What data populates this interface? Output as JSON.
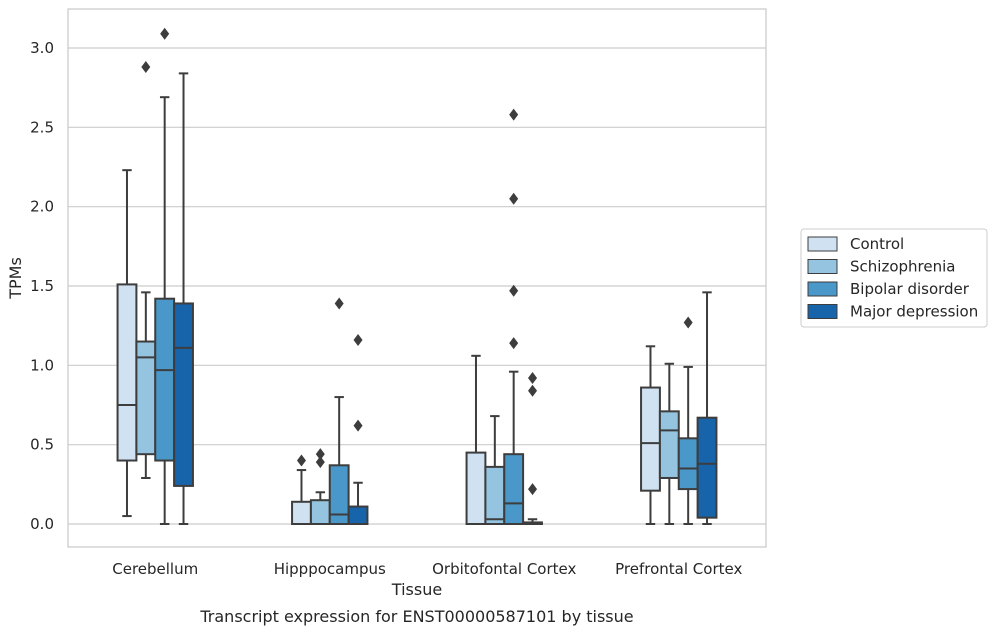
{
  "chart_data": {
    "type": "box",
    "title": "",
    "caption": "Transcript expression for ENST00000587101 by tissue",
    "xlabel": "Tissue",
    "ylabel": "TPMs",
    "ylim": [
      -0.15,
      3.25
    ],
    "yticks": [
      0.0,
      0.5,
      1.0,
      1.5,
      2.0,
      2.5,
      3.0
    ],
    "ytick_labels": [
      "0.0",
      "0.5",
      "1.0",
      "1.5",
      "2.0",
      "2.5",
      "3.0"
    ],
    "grid": "horizontal",
    "legend_position": "outside-right",
    "categories": [
      "Cerebellum",
      "Hipppocampus",
      "Orbitofontal Cortex",
      "Prefrontal Cortex"
    ],
    "series": [
      {
        "name": "Control",
        "color": "#d0e1f2",
        "boxes": [
          {
            "whislo": 0.05,
            "q1": 0.4,
            "med": 0.75,
            "q3": 1.51,
            "whishi": 2.23,
            "fliers": []
          },
          {
            "whislo": 0.0,
            "q1": 0.0,
            "med": 0.0,
            "q3": 0.14,
            "whishi": 0.34,
            "fliers": [
              0.4
            ]
          },
          {
            "whislo": 0.0,
            "q1": 0.0,
            "med": 0.0,
            "q3": 0.45,
            "whishi": 1.06,
            "fliers": []
          },
          {
            "whislo": 0.0,
            "q1": 0.21,
            "med": 0.51,
            "q3": 0.86,
            "whishi": 1.12,
            "fliers": []
          }
        ]
      },
      {
        "name": "Schizophrenia",
        "color": "#94c4df",
        "boxes": [
          {
            "whislo": 0.29,
            "q1": 0.44,
            "med": 1.05,
            "q3": 1.15,
            "whishi": 1.46,
            "fliers": [
              2.88
            ]
          },
          {
            "whislo": 0.0,
            "q1": 0.0,
            "med": 0.0,
            "q3": 0.15,
            "whishi": 0.2,
            "fliers": [
              0.39,
              0.44
            ]
          },
          {
            "whislo": 0.0,
            "q1": 0.0,
            "med": 0.03,
            "q3": 0.36,
            "whishi": 0.68,
            "fliers": []
          },
          {
            "whislo": 0.0,
            "q1": 0.29,
            "med": 0.59,
            "q3": 0.71,
            "whishi": 1.01,
            "fliers": []
          }
        ]
      },
      {
        "name": "Bipolar disorder",
        "color": "#4a98c9",
        "boxes": [
          {
            "whislo": 0.0,
            "q1": 0.4,
            "med": 0.97,
            "q3": 1.42,
            "whishi": 2.69,
            "fliers": [
              3.09
            ]
          },
          {
            "whislo": 0.0,
            "q1": 0.0,
            "med": 0.06,
            "q3": 0.37,
            "whishi": 0.8,
            "fliers": [
              1.39
            ]
          },
          {
            "whislo": 0.0,
            "q1": 0.0,
            "med": 0.13,
            "q3": 0.44,
            "whishi": 0.96,
            "fliers": [
              1.14,
              1.47,
              2.05,
              2.58
            ]
          },
          {
            "whislo": 0.0,
            "q1": 0.22,
            "med": 0.35,
            "q3": 0.54,
            "whishi": 0.99,
            "fliers": [
              1.27
            ]
          }
        ]
      },
      {
        "name": "Major depression",
        "color": "#1764ab",
        "boxes": [
          {
            "whislo": 0.0,
            "q1": 0.24,
            "med": 1.11,
            "q3": 1.39,
            "whishi": 2.84,
            "fliers": []
          },
          {
            "whislo": 0.0,
            "q1": 0.0,
            "med": 0.0,
            "q3": 0.11,
            "whishi": 0.26,
            "fliers": [
              0.62,
              1.16
            ]
          },
          {
            "whislo": 0.0,
            "q1": 0.0,
            "med": 0.0,
            "q3": 0.01,
            "whishi": 0.03,
            "fliers": [
              0.22,
              0.84,
              0.92
            ]
          },
          {
            "whislo": 0.0,
            "q1": 0.04,
            "med": 0.38,
            "q3": 0.67,
            "whishi": 1.46,
            "fliers": []
          }
        ]
      }
    ]
  }
}
